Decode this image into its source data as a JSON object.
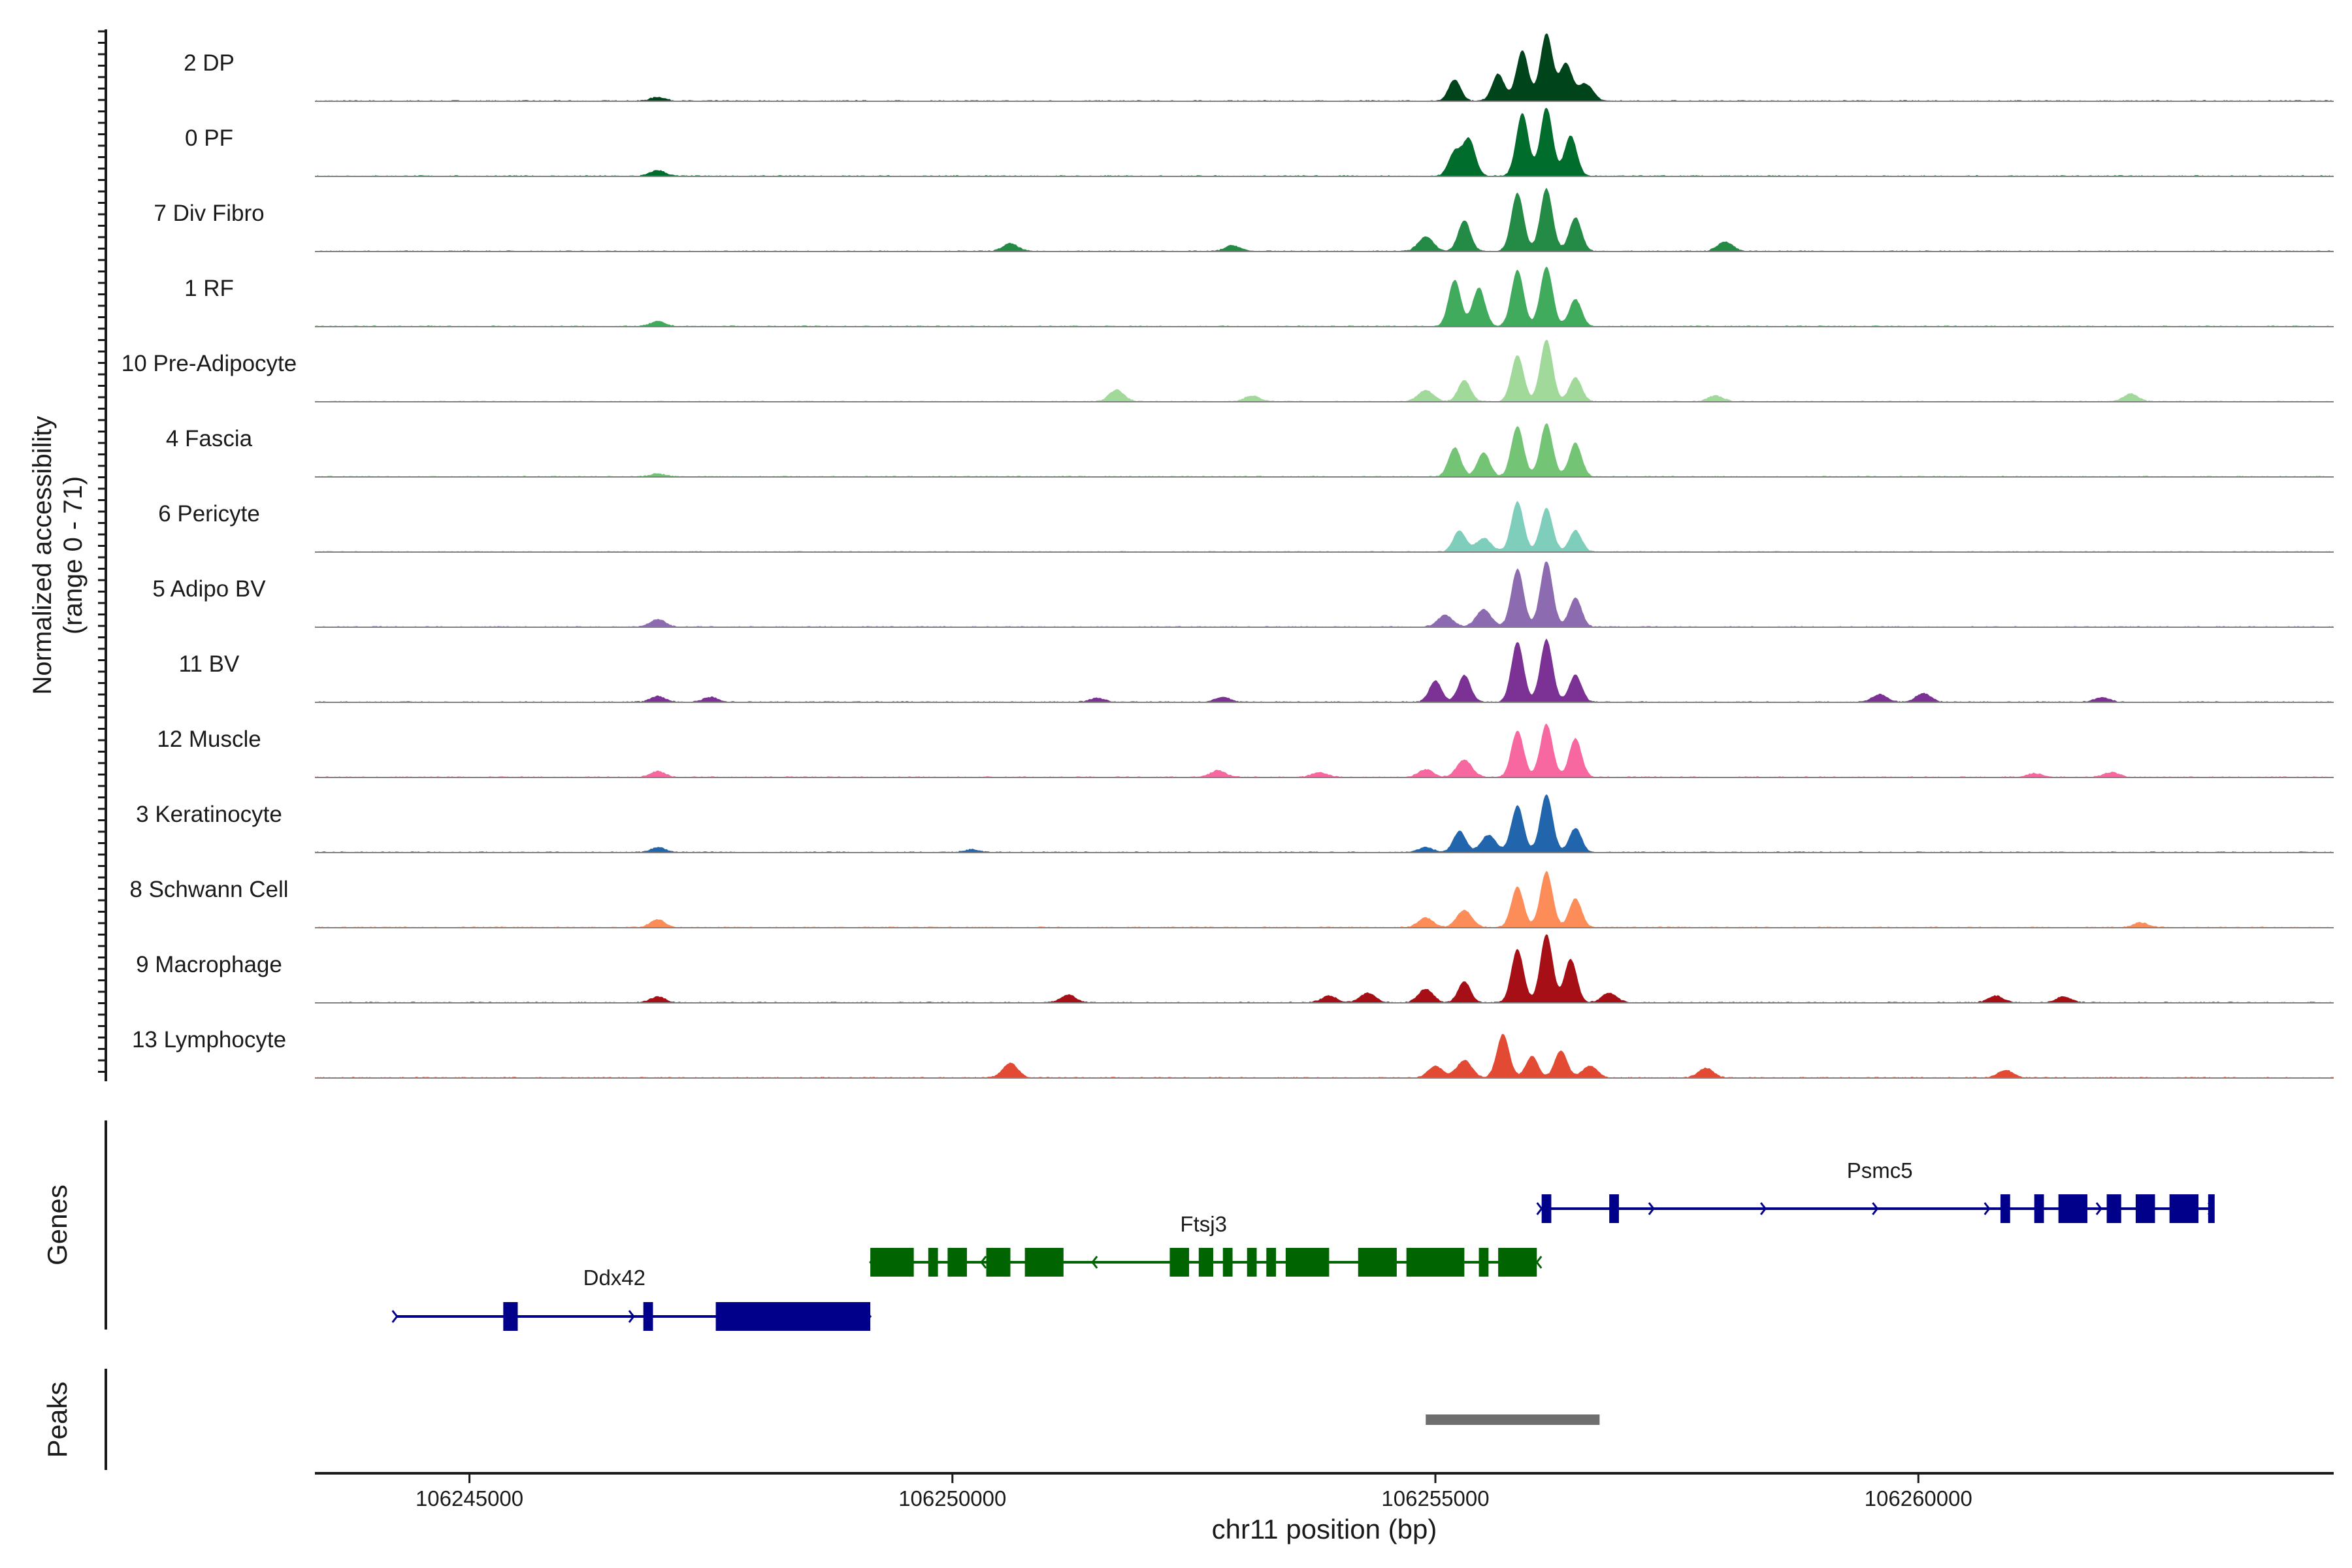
{
  "chart_data": {
    "type": "area",
    "title": "",
    "ylabel_line1": "Normalized accessibility",
    "ylabel_line2": "(range 0 - 71)",
    "y_range": [
      0,
      71
    ],
    "xlabel": "chr11 position (bp)",
    "x_range": [
      106243400,
      106264300
    ],
    "x_ticks": [
      106245000,
      106250000,
      106255000,
      106260000
    ],
    "x_tick_labels": [
      "106245000",
      "106250000",
      "106255000",
      "106260000"
    ],
    "series": [
      {
        "name": "2 DP",
        "color": "#00441b",
        "peaks": [
          [
            106255200,
            22
          ],
          [
            106255650,
            28
          ],
          [
            106255900,
            52
          ],
          [
            106256150,
            70
          ],
          [
            106256350,
            38
          ],
          [
            106256550,
            18
          ],
          [
            106246950,
            4
          ]
        ]
      },
      {
        "name": "0 PF",
        "color": "#006d2c",
        "peaks": [
          [
            106255200,
            25
          ],
          [
            106255350,
            38
          ],
          [
            106255900,
            65
          ],
          [
            106256150,
            71
          ],
          [
            106256400,
            42
          ],
          [
            106246950,
            6
          ]
        ]
      },
      {
        "name": "7 Div Fibro",
        "color": "#238b45",
        "peaks": [
          [
            106254900,
            15
          ],
          [
            106255300,
            32
          ],
          [
            106255850,
            60
          ],
          [
            106256150,
            65
          ],
          [
            106256450,
            35
          ],
          [
            106250600,
            8
          ],
          [
            106252900,
            6
          ],
          [
            106258000,
            10
          ]
        ]
      },
      {
        "name": "1 RF",
        "color": "#41ab5d",
        "peaks": [
          [
            106255200,
            48
          ],
          [
            106255450,
            40
          ],
          [
            106255850,
            58
          ],
          [
            106256150,
            62
          ],
          [
            106256450,
            28
          ],
          [
            106246950,
            5
          ]
        ]
      },
      {
        "name": "10 Pre-Adipocyte",
        "color": "#a1d99b",
        "peaks": [
          [
            106254900,
            12
          ],
          [
            106255300,
            22
          ],
          [
            106255850,
            48
          ],
          [
            106256150,
            64
          ],
          [
            106256450,
            25
          ],
          [
            106251700,
            12
          ],
          [
            106253100,
            6
          ],
          [
            106257900,
            6
          ],
          [
            106262200,
            8
          ]
        ]
      },
      {
        "name": "4 Fascia",
        "color": "#74c476",
        "peaks": [
          [
            106255200,
            30
          ],
          [
            106255500,
            25
          ],
          [
            106255850,
            52
          ],
          [
            106256150,
            55
          ],
          [
            106256450,
            35
          ],
          [
            106246950,
            3
          ]
        ]
      },
      {
        "name": "6 Pericyte",
        "color": "#7fcdbb",
        "peaks": [
          [
            106255250,
            22
          ],
          [
            106255500,
            14
          ],
          [
            106255850,
            52
          ],
          [
            106256150,
            45
          ],
          [
            106256450,
            22
          ]
        ]
      },
      {
        "name": "5 Adipo BV",
        "color": "#8c6bb1",
        "peaks": [
          [
            106255100,
            12
          ],
          [
            106255500,
            18
          ],
          [
            106255850,
            60
          ],
          [
            106256150,
            68
          ],
          [
            106256450,
            30
          ],
          [
            106246950,
            8
          ]
        ]
      },
      {
        "name": "11 BV",
        "color": "#7b3294",
        "peaks": [
          [
            106255000,
            22
          ],
          [
            106255300,
            28
          ],
          [
            106255850,
            62
          ],
          [
            106256150,
            65
          ],
          [
            106256450,
            28
          ],
          [
            106246950,
            6
          ],
          [
            106247500,
            5
          ],
          [
            106251500,
            4
          ],
          [
            106252800,
            5
          ],
          [
            106259600,
            8
          ],
          [
            106260050,
            9
          ],
          [
            106261900,
            5
          ]
        ]
      },
      {
        "name": "12 Muscle",
        "color": "#f768a1",
        "peaks": [
          [
            106254900,
            8
          ],
          [
            106255300,
            18
          ],
          [
            106255850,
            48
          ],
          [
            106256150,
            55
          ],
          [
            106256450,
            40
          ],
          [
            106246950,
            6
          ],
          [
            106252750,
            7
          ],
          [
            106253800,
            5
          ],
          [
            106261200,
            4
          ],
          [
            106262000,
            5
          ]
        ]
      },
      {
        "name": "3 Keratinocyte",
        "color": "#2166ac",
        "peaks": [
          [
            106254900,
            5
          ],
          [
            106255250,
            22
          ],
          [
            106255550,
            18
          ],
          [
            106255850,
            48
          ],
          [
            106256150,
            60
          ],
          [
            106256450,
            25
          ],
          [
            106246950,
            5
          ],
          [
            106250200,
            3
          ]
        ]
      },
      {
        "name": "8 Schwann Cell",
        "color": "#fc8d59",
        "peaks": [
          [
            106254900,
            10
          ],
          [
            106255300,
            18
          ],
          [
            106255850,
            42
          ],
          [
            106256150,
            58
          ],
          [
            106256450,
            30
          ],
          [
            106246950,
            8
          ],
          [
            106262300,
            5
          ]
        ]
      },
      {
        "name": "9 Macrophage",
        "color": "#a50f15",
        "peaks": [
          [
            106254300,
            10
          ],
          [
            106254900,
            14
          ],
          [
            106255300,
            22
          ],
          [
            106255850,
            55
          ],
          [
            106256150,
            71
          ],
          [
            106256400,
            45
          ],
          [
            106256800,
            10
          ],
          [
            106246950,
            6
          ],
          [
            106251200,
            8
          ],
          [
            106253900,
            7
          ],
          [
            106260800,
            7
          ],
          [
            106261500,
            6
          ]
        ]
      },
      {
        "name": "13 Lymphocyte",
        "color": "#e34a33",
        "peaks": [
          [
            106255000,
            12
          ],
          [
            106255300,
            18
          ],
          [
            106255700,
            45
          ],
          [
            106256000,
            22
          ],
          [
            106256300,
            28
          ],
          [
            106256600,
            12
          ],
          [
            106250600,
            15
          ],
          [
            106257800,
            10
          ],
          [
            106260900,
            8
          ]
        ]
      }
    ],
    "genes": [
      {
        "name": "Ddx42",
        "color": "#00008b",
        "strand": "+",
        "start": 106244250,
        "end": 106249150,
        "exons": [
          [
            106245350,
            106245500
          ],
          [
            106246800,
            106246900
          ],
          [
            106247550,
            106249150
          ]
        ]
      },
      {
        "name": "Ftsj3",
        "color": "#006400",
        "strand": "-",
        "start": 106249150,
        "end": 106256050,
        "exons": [
          [
            106249150,
            106249600
          ],
          [
            106249750,
            106249850
          ],
          [
            106249950,
            106250150
          ],
          [
            106250350,
            106250600
          ],
          [
            106250750,
            106251150
          ],
          [
            106252250,
            106252450
          ],
          [
            106252550,
            106252700
          ],
          [
            106252800,
            106252900
          ],
          [
            106253050,
            106253150
          ],
          [
            106253250,
            106253350
          ],
          [
            106253450,
            106253900
          ],
          [
            106254200,
            106254600
          ],
          [
            106254700,
            106255300
          ],
          [
            106255450,
            106255550
          ],
          [
            106255650,
            106256050
          ]
        ]
      },
      {
        "name": "Psmc5",
        "color": "#00008b",
        "strand": "+",
        "start": 106256100,
        "end": 106263050,
        "exons": [
          [
            106256100,
            106256200
          ],
          [
            106256800,
            106256900
          ],
          [
            106260850,
            106260950
          ],
          [
            106261200,
            106261300
          ],
          [
            106261450,
            106261750
          ],
          [
            106261950,
            106262100
          ],
          [
            106262250,
            106262450
          ],
          [
            106262600,
            106262900
          ],
          [
            106263000,
            106263050
          ]
        ]
      }
    ],
    "genes_label": "Genes",
    "peaks_label": "Peaks",
    "peak_regions": [
      [
        106254900,
        106256700
      ]
    ],
    "peak_color": "#6e6e6e"
  }
}
